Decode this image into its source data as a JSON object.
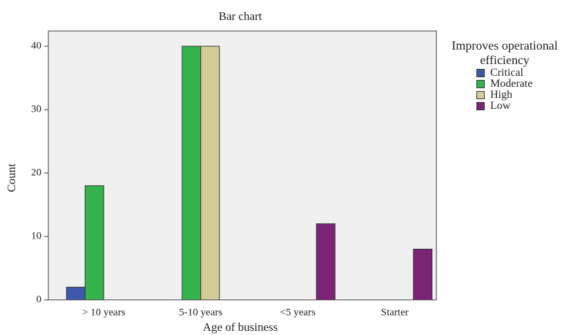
{
  "chart_data": {
    "type": "bar",
    "title": "Bar chart",
    "x_label": "Age of business",
    "y_label": "Count",
    "legend_title": "Improves operational efficiency",
    "categories": [
      "> 10 years",
      "5-10 years",
      "<5 years",
      "Starter"
    ],
    "series": [
      {
        "name": "Critical",
        "color": "#3f57ab",
        "values": [
          2,
          null,
          null,
          null
        ]
      },
      {
        "name": "Moderate",
        "color": "#35b34c",
        "values": [
          18,
          40,
          null,
          null
        ]
      },
      {
        "name": "High",
        "color": "#d4cc98",
        "values": [
          null,
          40,
          null,
          null
        ]
      },
      {
        "name": "Low",
        "color": "#7c2378",
        "values": [
          null,
          null,
          12,
          8
        ]
      }
    ],
    "ylim": [
      0,
      42.4
    ],
    "yticks": [
      0,
      10,
      20,
      30,
      40
    ],
    "grid": false,
    "legend": "right"
  }
}
